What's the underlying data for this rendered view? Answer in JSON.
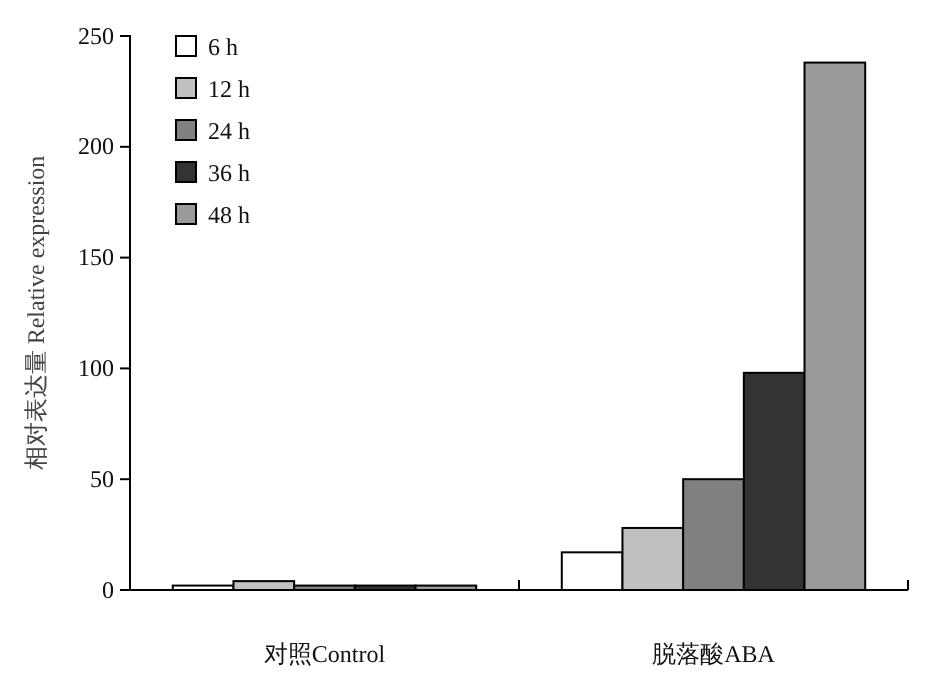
{
  "chart_data": {
    "type": "bar",
    "categories": [
      "对照Control",
      "脱落酸ABA"
    ],
    "ylabel": "相对表达量 Relative expression",
    "ylim": [
      0,
      250
    ],
    "yticks": [
      0,
      50,
      100,
      150,
      200,
      250
    ],
    "legend": "top left",
    "grid": false,
    "series": [
      {
        "name": "6 h",
        "color": "#ffffff",
        "values": [
          2,
          17
        ]
      },
      {
        "name": "12 h",
        "color": "#c0c0c0",
        "values": [
          4,
          28
        ]
      },
      {
        "name": "24 h",
        "color": "#808080",
        "values": [
          2,
          50
        ]
      },
      {
        "name": "36 h",
        "color": "#333333",
        "values": [
          2,
          98
        ]
      },
      {
        "name": "48 h",
        "color": "#9a9a9a",
        "values": [
          2,
          238
        ]
      }
    ]
  }
}
